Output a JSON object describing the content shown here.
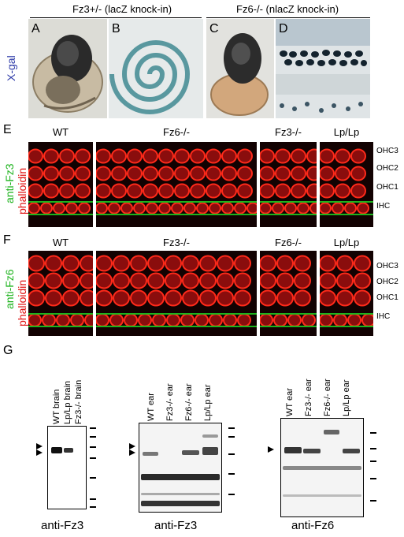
{
  "section_labels": {
    "A": "A",
    "B": "B",
    "C": "C",
    "D": "D",
    "E": "E",
    "F": "F",
    "G": "G"
  },
  "header": {
    "left": "Fz3+/- (lacZ knock-in)",
    "right": "Fz6-/- (nlacZ knock-in)"
  },
  "xgal_label": "X-gal",
  "panel_e": {
    "stain_green": "anti-Fz3",
    "stain_red": "phalloidin",
    "columns": [
      "WT",
      "Fz6-/-",
      "Fz3-/-",
      "Lp/Lp"
    ],
    "rows": [
      "OHC3",
      "OHC2",
      "OHC1",
      "IHC"
    ]
  },
  "panel_f": {
    "stain_green": "anti-Fz6",
    "stain_red": "phalloidin",
    "columns": [
      "WT",
      "Fz3-/-",
      "Fz6-/-",
      "Lp/Lp"
    ],
    "rows": [
      "OHC3",
      "OHC2",
      "OHC1",
      "IHC"
    ]
  },
  "blot1": {
    "lanes": [
      "WT brain",
      "Lp/Lp brain",
      "Fz3-/- brain"
    ],
    "caption": "anti-Fz3"
  },
  "blot2": {
    "lanes": [
      "WT ear",
      "Fz3-/- ear",
      "Fz6-/- ear",
      "Lp/Lp ear"
    ],
    "caption": "anti-Fz3"
  },
  "blot3": {
    "lanes": [
      "WT ear",
      "Fz3-/- ear",
      "Fz6-/- ear",
      "Lp/Lp ear"
    ],
    "caption": "anti-Fz6"
  },
  "colors": {
    "stain_green": "#1db31d",
    "stain_red": "#e01010",
    "xgal": "#2d3aa8"
  }
}
